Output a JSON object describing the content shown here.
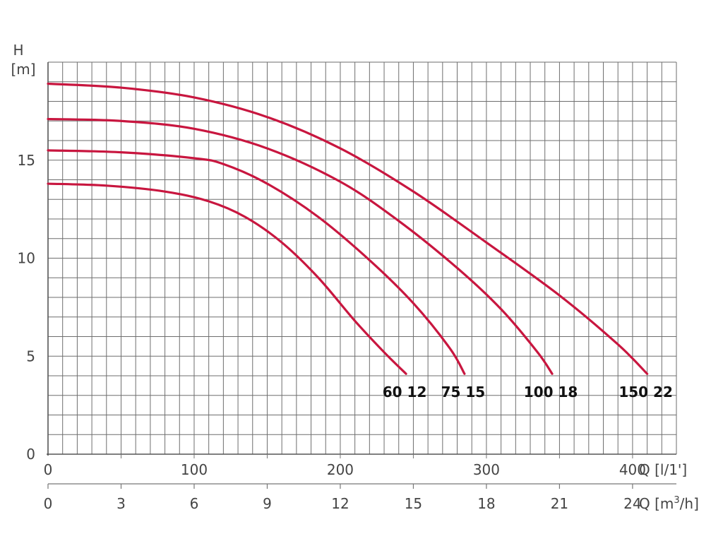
{
  "chart_data": {
    "type": "line",
    "ylabel": "H",
    "ylabel_unit": "[m]",
    "xlabel_primary": "Q [l/1']",
    "xlabel_secondary": "Q [m",
    "xlabel_secondary_sup": "3",
    "xlabel_secondary_tail": "/h]",
    "xlim": [
      0,
      430
    ],
    "ylim": [
      0,
      20
    ],
    "x_ticks_primary": [
      0,
      100,
      200,
      300,
      400
    ],
    "x_ticks_secondary": [
      0,
      3,
      6,
      9,
      12,
      15,
      18,
      21,
      24
    ],
    "y_ticks": [
      0,
      5,
      10,
      15
    ],
    "grid": true,
    "curve_color": "#c8163f",
    "series": [
      {
        "name": "60 12",
        "x": [
          0,
          40,
          80,
          110,
          135,
          160,
          185,
          210,
          230,
          245
        ],
        "y": [
          13.8,
          13.7,
          13.4,
          12.9,
          12.1,
          10.8,
          9.0,
          6.8,
          5.2,
          4.1
        ]
      },
      {
        "name": "75 15",
        "x": [
          0,
          50,
          100,
          120,
          150,
          185,
          220,
          250,
          275,
          285
        ],
        "y": [
          15.5,
          15.4,
          15.1,
          14.8,
          13.8,
          12.1,
          9.9,
          7.7,
          5.4,
          4.1
        ]
      },
      {
        "name": "100 18",
        "x": [
          0,
          50,
          100,
          150,
          200,
          240,
          280,
          310,
          335,
          345
        ],
        "y": [
          17.1,
          17.0,
          16.6,
          15.6,
          13.9,
          11.9,
          9.5,
          7.4,
          5.2,
          4.1
        ]
      },
      {
        "name": "150 22",
        "x": [
          0,
          50,
          100,
          150,
          200,
          250,
          300,
          350,
          390,
          410
        ],
        "y": [
          18.9,
          18.7,
          18.2,
          17.2,
          15.6,
          13.4,
          10.8,
          8.1,
          5.6,
          4.1
        ]
      }
    ]
  }
}
